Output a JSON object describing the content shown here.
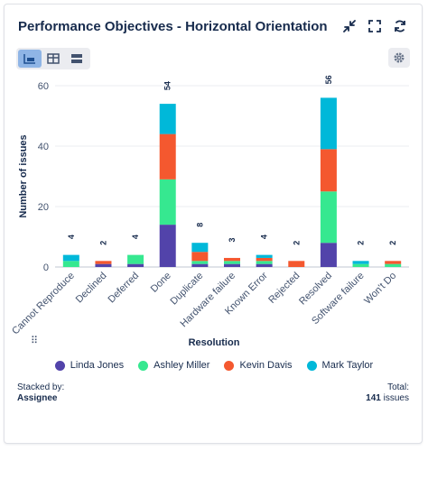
{
  "header": {
    "title": "Performance Objectives - Horizontal Orientation",
    "icons": [
      "collapse-icon",
      "fullscreen-icon",
      "refresh-icon"
    ]
  },
  "toolbar": {
    "views": [
      "bar-chart-view-icon",
      "table-view-icon",
      "list-view-icon"
    ],
    "active_view": 0,
    "settings_icon": "gear-icon"
  },
  "chart_data": {
    "type": "bar",
    "stacked": true,
    "categories": [
      "Cannot Reproduce",
      "Declined",
      "Deferred",
      "Done",
      "Duplicate",
      "Hardware failure",
      "Known Error",
      "Rejected",
      "Resolved",
      "Software failure",
      "Won't Do"
    ],
    "totals": [
      "4",
      "2",
      "4",
      "54",
      "8",
      "3",
      "4",
      "2",
      "56",
      "2",
      "2"
    ],
    "series": [
      {
        "name": "Linda Jones",
        "color": "#5243aa",
        "values": [
          0,
          1,
          1,
          14,
          1,
          1,
          1,
          0,
          8,
          0,
          0
        ]
      },
      {
        "name": "Ashley Miller",
        "color": "#36e890",
        "values": [
          2,
          0,
          3,
          15,
          1,
          1,
          1,
          0,
          17,
          1,
          1
        ]
      },
      {
        "name": "Kevin Davis",
        "color": "#f4582f",
        "values": [
          0,
          1,
          0,
          15,
          3,
          1,
          1,
          2,
          14,
          0,
          1
        ]
      },
      {
        "name": "Mark Taylor",
        "color": "#00b8d9",
        "values": [
          2,
          0,
          0,
          10,
          3,
          0,
          1,
          0,
          17,
          1,
          0
        ]
      }
    ],
    "yticks": [
      "0",
      "20",
      "40",
      "60"
    ],
    "ylim": [
      0,
      60
    ],
    "xlabel": "Resolution",
    "ylabel": "Number of issues",
    "grid": true,
    "legend": "bottom"
  },
  "footer": {
    "stacked_by_label": "Stacked by:",
    "stacked_by_value": "Assignee",
    "total_label": "Total:",
    "total_count": "141",
    "total_unit": "issues"
  }
}
